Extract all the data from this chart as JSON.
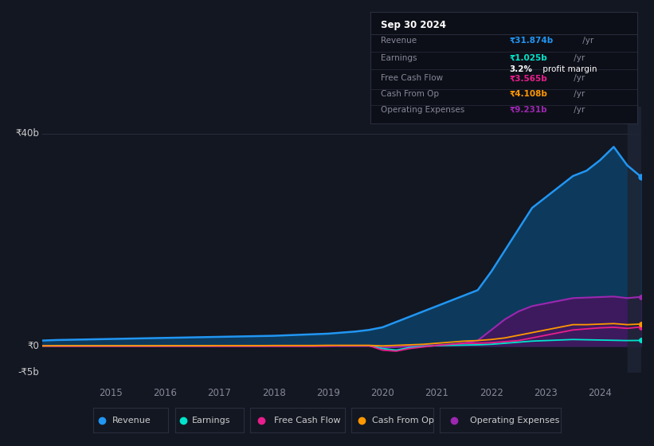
{
  "background_color": "#131722",
  "plot_bg_color": "#131722",
  "years": [
    2013.75,
    2014.0,
    2014.25,
    2014.5,
    2014.75,
    2015.0,
    2015.25,
    2015.5,
    2015.75,
    2016.0,
    2016.25,
    2016.5,
    2016.75,
    2017.0,
    2017.25,
    2017.5,
    2017.75,
    2018.0,
    2018.25,
    2018.5,
    2018.75,
    2019.0,
    2019.25,
    2019.5,
    2019.75,
    2020.0,
    2020.25,
    2020.5,
    2020.75,
    2021.0,
    2021.25,
    2021.5,
    2021.75,
    2022.0,
    2022.25,
    2022.5,
    2022.75,
    2023.0,
    2023.25,
    2023.5,
    2023.75,
    2024.0,
    2024.25,
    2024.5,
    2024.75
  ],
  "revenue": [
    1.0,
    1.1,
    1.15,
    1.2,
    1.25,
    1.3,
    1.35,
    1.4,
    1.45,
    1.5,
    1.55,
    1.6,
    1.65,
    1.7,
    1.75,
    1.8,
    1.85,
    1.9,
    2.0,
    2.1,
    2.2,
    2.3,
    2.5,
    2.7,
    3.0,
    3.5,
    4.5,
    5.5,
    6.5,
    7.5,
    8.5,
    9.5,
    10.5,
    14.0,
    18.0,
    22.0,
    26.0,
    28.0,
    30.0,
    32.0,
    33.0,
    35.0,
    37.5,
    34.0,
    31.874
  ],
  "earnings": [
    0.0,
    0.01,
    0.01,
    0.01,
    0.01,
    0.01,
    0.01,
    0.01,
    0.01,
    0.01,
    0.01,
    0.01,
    0.01,
    0.01,
    0.01,
    0.01,
    0.01,
    0.02,
    0.02,
    0.02,
    0.02,
    0.05,
    0.05,
    0.05,
    0.05,
    -0.5,
    -0.8,
    -0.3,
    -0.1,
    0.05,
    0.1,
    0.15,
    0.2,
    0.3,
    0.5,
    0.7,
    0.9,
    1.0,
    1.1,
    1.2,
    1.15,
    1.1,
    1.05,
    1.0,
    1.025
  ],
  "free_cash_flow": [
    0.0,
    -0.05,
    -0.05,
    -0.05,
    -0.05,
    -0.05,
    -0.05,
    -0.05,
    -0.05,
    -0.05,
    -0.05,
    -0.05,
    -0.05,
    -0.05,
    -0.05,
    -0.05,
    -0.05,
    -0.05,
    -0.05,
    -0.05,
    -0.05,
    0.0,
    0.05,
    0.05,
    0.05,
    -0.8,
    -1.0,
    -0.5,
    -0.2,
    0.1,
    0.3,
    0.5,
    0.5,
    0.6,
    0.8,
    1.0,
    1.5,
    2.0,
    2.5,
    3.0,
    3.2,
    3.4,
    3.5,
    3.3,
    3.565
  ],
  "cash_from_op": [
    0.0,
    0.02,
    0.02,
    0.02,
    0.02,
    0.02,
    0.02,
    0.02,
    0.02,
    0.03,
    0.03,
    0.03,
    0.03,
    0.05,
    0.05,
    0.05,
    0.05,
    0.07,
    0.07,
    0.07,
    0.07,
    0.1,
    0.1,
    0.1,
    0.1,
    0.0,
    0.1,
    0.2,
    0.3,
    0.5,
    0.7,
    0.9,
    1.0,
    1.2,
    1.5,
    2.0,
    2.5,
    3.0,
    3.5,
    4.0,
    4.0,
    4.1,
    4.2,
    4.0,
    4.108
  ],
  "operating_expenses": [
    0.0,
    0.0,
    0.0,
    0.0,
    0.0,
    0.0,
    0.0,
    0.0,
    0.0,
    0.0,
    0.0,
    0.0,
    0.0,
    0.0,
    0.0,
    0.0,
    0.0,
    0.0,
    0.0,
    0.0,
    0.0,
    0.0,
    0.0,
    0.0,
    0.0,
    -0.3,
    -0.2,
    -0.1,
    0.0,
    0.1,
    0.2,
    0.5,
    1.0,
    3.0,
    5.0,
    6.5,
    7.5,
    8.0,
    8.5,
    9.0,
    9.1,
    9.2,
    9.3,
    9.0,
    9.231
  ],
  "revenue_color": "#2196f3",
  "earnings_color": "#00e5cc",
  "free_cash_flow_color": "#e91e8c",
  "cash_from_op_color": "#ff9800",
  "operating_expenses_color": "#9c27b0",
  "revenue_fill_color": "#0d3a5c",
  "operating_fill_color": "#3d1a5e",
  "ylim": [
    -5,
    45
  ],
  "xlim_start": 2013.75,
  "xlim_end": 2024.75,
  "highlight_start": 2024.5,
  "ytick_labels": [
    "-₹5b",
    "₹0",
    "₹40b"
  ],
  "ytick_vals": [
    -5,
    0,
    40
  ],
  "grid_color": "#2a2d3e",
  "text_color": "#888899",
  "year_ticks": [
    2015,
    2016,
    2017,
    2018,
    2019,
    2020,
    2021,
    2022,
    2023,
    2024
  ],
  "info_box_title": "Sep 30 2024",
  "info_rows": [
    {
      "label": "Revenue",
      "value": "₹31.874b",
      "suffix": " /yr",
      "value_color": "#2196f3",
      "bold_value": true,
      "sub": null
    },
    {
      "label": "Earnings",
      "value": "₹1.025b",
      "suffix": " /yr",
      "value_color": "#00e5cc",
      "bold_value": true,
      "sub": "3.2% profit margin"
    },
    {
      "label": "Free Cash Flow",
      "value": "₹3.565b",
      "suffix": " /yr",
      "value_color": "#e91e8c",
      "bold_value": true,
      "sub": null
    },
    {
      "label": "Cash From Op",
      "value": "₹4.108b",
      "suffix": " /yr",
      "value_color": "#ff9800",
      "bold_value": true,
      "sub": null
    },
    {
      "label": "Operating Expenses",
      "value": "₹9.231b",
      "suffix": " /yr",
      "value_color": "#9c27b0",
      "bold_value": true,
      "sub": null
    }
  ],
  "legend_items": [
    "Revenue",
    "Earnings",
    "Free Cash Flow",
    "Cash From Op",
    "Operating Expenses"
  ],
  "legend_colors": [
    "#2196f3",
    "#00e5cc",
    "#e91e8c",
    "#ff9800",
    "#9c27b0"
  ]
}
